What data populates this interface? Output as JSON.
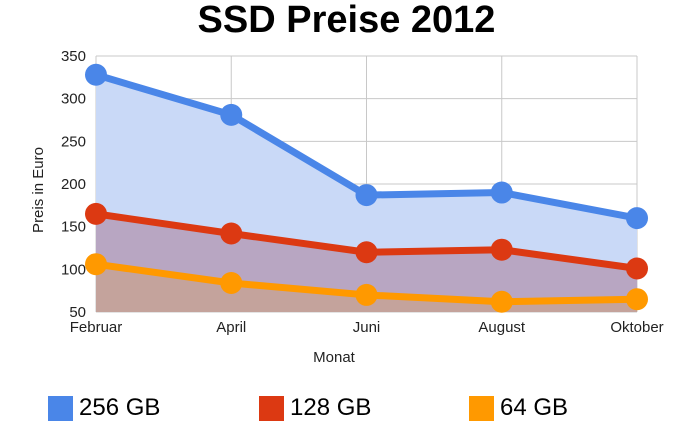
{
  "chart_data": {
    "type": "area",
    "title": "SSD Preise 2012",
    "xlabel": "Monat",
    "ylabel": "Preis in Euro",
    "categories": [
      "Februar",
      "April",
      "Juni",
      "August",
      "Oktober"
    ],
    "ylim": [
      50,
      350
    ],
    "yticks": [
      50,
      100,
      150,
      200,
      250,
      300,
      350
    ],
    "grid": true,
    "legend_position": "bottom",
    "series": [
      {
        "name": "256 GB",
        "values": [
          328,
          281,
          187,
          190,
          160
        ],
        "color": "#4a86e8",
        "fill": "#c9d9f7"
      },
      {
        "name": "128 GB",
        "values": [
          165,
          142,
          120,
          123,
          101
        ],
        "color": "#dc3912",
        "fill": "#b8a6c2"
      },
      {
        "name": "64 GB",
        "values": [
          106,
          84,
          70,
          62,
          65
        ],
        "color": "#ff9900",
        "fill": "#c4a39c"
      }
    ]
  }
}
